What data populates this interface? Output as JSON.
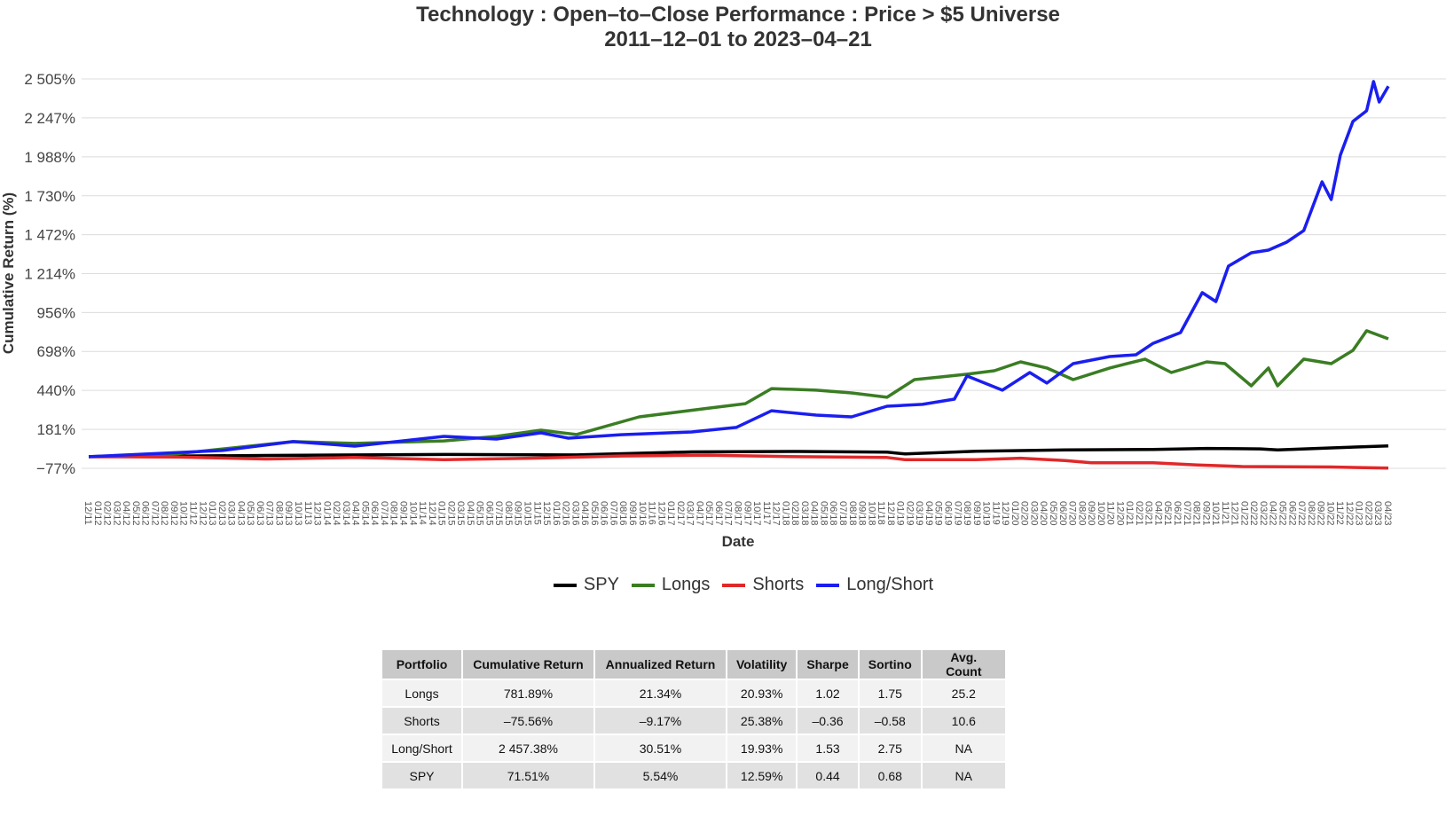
{
  "chart_data": {
    "type": "line",
    "title": "Technology : Open–to–Close Performance : Price > $5 Universe",
    "subtitle": "2011–12–01 to 2023–04–21",
    "xlabel": "Date",
    "ylabel": "Cumulative Return (%)",
    "xlim": [
      2011.92,
      2023.3
    ],
    "ylim": [
      -77,
      2505
    ],
    "y_ticks": [
      -77,
      181,
      440,
      698,
      956,
      1214,
      1472,
      1730,
      1988,
      2247,
      2505
    ],
    "y_tick_labels": [
      "−77%",
      "181%",
      "440%",
      "698%",
      "956%",
      "1 214%",
      "1 472%",
      "1 730%",
      "1 988%",
      "2 247%",
      "2 505%"
    ],
    "x_tick_labels": [
      "12/11",
      "01/12",
      "02/12",
      "03/12",
      "04/12",
      "05/12",
      "06/12",
      "07/12",
      "08/12",
      "09/12",
      "10/12",
      "11/12",
      "12/12",
      "01/13",
      "02/13",
      "03/13",
      "04/13",
      "05/13",
      "06/13",
      "07/13",
      "08/13",
      "09/13",
      "10/13",
      "11/13",
      "12/13",
      "01/14",
      "02/14",
      "03/14",
      "04/14",
      "05/14",
      "06/14",
      "07/14",
      "08/14",
      "09/14",
      "10/14",
      "11/14",
      "12/14",
      "01/15",
      "02/15",
      "03/15",
      "04/15",
      "05/15",
      "06/15",
      "07/15",
      "08/15",
      "09/15",
      "10/15",
      "11/15",
      "12/15",
      "01/16",
      "02/16",
      "03/16",
      "04/16",
      "05/16",
      "06/16",
      "07/16",
      "08/16",
      "09/16",
      "10/16",
      "11/16",
      "12/16",
      "01/17",
      "02/17",
      "03/17",
      "04/17",
      "05/17",
      "06/17",
      "07/17",
      "08/17",
      "09/17",
      "10/17",
      "11/17",
      "12/17",
      "01/18",
      "02/18",
      "03/18",
      "04/18",
      "05/18",
      "06/18",
      "07/18",
      "08/18",
      "09/18",
      "10/18",
      "11/18",
      "12/18",
      "01/19",
      "02/19",
      "03/19",
      "04/19",
      "05/19",
      "06/19",
      "07/19",
      "08/19",
      "09/19",
      "10/19",
      "11/19",
      "12/19",
      "01/20",
      "02/20",
      "03/20",
      "04/20",
      "05/20",
      "06/20",
      "07/20",
      "08/20",
      "09/20",
      "10/20",
      "11/20",
      "12/20",
      "01/21",
      "02/21",
      "03/21",
      "04/21",
      "05/21",
      "06/21",
      "07/21",
      "08/21",
      "09/21",
      "10/21",
      "11/21",
      "12/21",
      "01/22",
      "02/22",
      "03/22",
      "04/22",
      "05/22",
      "06/22",
      "07/22",
      "08/22",
      "09/22",
      "10/22",
      "11/22",
      "12/22",
      "01/23",
      "02/23",
      "03/23",
      "04/23"
    ],
    "grid": true,
    "legend_position": "bottom",
    "series": [
      {
        "name": "SPY",
        "color": "#000000",
        "points": [
          [
            2011.92,
            0
          ],
          [
            2013.47,
            8
          ],
          [
            2015.03,
            15
          ],
          [
            2016.19,
            12
          ],
          [
            2017.2,
            32
          ],
          [
            2018.14,
            35
          ],
          [
            2018.91,
            30
          ],
          [
            2019.07,
            18
          ],
          [
            2019.69,
            36
          ],
          [
            2020.47,
            45
          ],
          [
            2021.24,
            48
          ],
          [
            2021.71,
            55
          ],
          [
            2022.18,
            52
          ],
          [
            2022.33,
            45
          ],
          [
            2022.8,
            58
          ],
          [
            2023.3,
            72
          ]
        ]
      },
      {
        "name": "Longs",
        "color": "#3a7d23",
        "points": [
          [
            2011.92,
            0
          ],
          [
            2012.7,
            20
          ],
          [
            2013.71,
            100
          ],
          [
            2014.25,
            88
          ],
          [
            2015.03,
            105
          ],
          [
            2015.49,
            135
          ],
          [
            2015.88,
            176
          ],
          [
            2016.19,
            147
          ],
          [
            2016.74,
            264
          ],
          [
            2017.36,
            323
          ],
          [
            2017.67,
            352
          ],
          [
            2017.9,
            452
          ],
          [
            2018.29,
            441
          ],
          [
            2018.6,
            423
          ],
          [
            2018.91,
            394
          ],
          [
            2019.15,
            511
          ],
          [
            2019.38,
            529
          ],
          [
            2019.61,
            547
          ],
          [
            2019.85,
            570
          ],
          [
            2020.08,
            629
          ],
          [
            2020.31,
            588
          ],
          [
            2020.54,
            511
          ],
          [
            2020.86,
            588
          ],
          [
            2021.17,
            647
          ],
          [
            2021.4,
            558
          ],
          [
            2021.71,
            629
          ],
          [
            2021.87,
            617
          ],
          [
            2022.1,
            470
          ],
          [
            2022.25,
            588
          ],
          [
            2022.33,
            470
          ],
          [
            2022.56,
            647
          ],
          [
            2022.8,
            617
          ],
          [
            2022.99,
            705
          ],
          [
            2023.11,
            835
          ],
          [
            2023.3,
            782
          ]
        ]
      },
      {
        "name": "Shorts",
        "color": "#e0282a",
        "points": [
          [
            2011.92,
            0
          ],
          [
            2012.7,
            -2
          ],
          [
            2013.47,
            -15
          ],
          [
            2014.25,
            -5
          ],
          [
            2015.03,
            -20
          ],
          [
            2015.8,
            -10
          ],
          [
            2016.58,
            5
          ],
          [
            2017.36,
            10
          ],
          [
            2018.14,
            0
          ],
          [
            2018.91,
            -5
          ],
          [
            2019.07,
            -20
          ],
          [
            2019.69,
            -20
          ],
          [
            2020.08,
            -10
          ],
          [
            2020.47,
            -25
          ],
          [
            2020.7,
            -40
          ],
          [
            2021.24,
            -40
          ],
          [
            2021.63,
            -55
          ],
          [
            2022.02,
            -65
          ],
          [
            2022.8,
            -68
          ],
          [
            2023.3,
            -76
          ]
        ]
      },
      {
        "name": "Long/Short",
        "color": "#1a1ef0",
        "points": [
          [
            2011.92,
            0
          ],
          [
            2013.09,
            41
          ],
          [
            2013.71,
            100
          ],
          [
            2014.25,
            70
          ],
          [
            2015.03,
            135
          ],
          [
            2015.49,
            117
          ],
          [
            2015.88,
            158
          ],
          [
            2016.12,
            123
          ],
          [
            2016.58,
            146
          ],
          [
            2017.2,
            164
          ],
          [
            2017.59,
            194
          ],
          [
            2017.9,
            305
          ],
          [
            2018.29,
            276
          ],
          [
            2018.6,
            264
          ],
          [
            2018.91,
            335
          ],
          [
            2019.22,
            347
          ],
          [
            2019.5,
            382
          ],
          [
            2019.61,
            535
          ],
          [
            2019.92,
            441
          ],
          [
            2020.16,
            558
          ],
          [
            2020.31,
            488
          ],
          [
            2020.54,
            617
          ],
          [
            2020.86,
            664
          ],
          [
            2021.09,
            676
          ],
          [
            2021.24,
            752
          ],
          [
            2021.48,
            823
          ],
          [
            2021.67,
            1088
          ],
          [
            2021.79,
            1029
          ],
          [
            2021.9,
            1264
          ],
          [
            2022.1,
            1352
          ],
          [
            2022.25,
            1370
          ],
          [
            2022.41,
            1423
          ],
          [
            2022.56,
            1500
          ],
          [
            2022.72,
            1823
          ],
          [
            2022.8,
            1705
          ],
          [
            2022.88,
            2000
          ],
          [
            2022.99,
            2223
          ],
          [
            2023.11,
            2294
          ],
          [
            2023.17,
            2488
          ],
          [
            2023.22,
            2352
          ],
          [
            2023.3,
            2457
          ]
        ]
      }
    ]
  },
  "legend": [
    {
      "label": "SPY",
      "color": "#000000"
    },
    {
      "label": "Longs",
      "color": "#3a7d23"
    },
    {
      "label": "Shorts",
      "color": "#e0282a"
    },
    {
      "label": "Long/Short",
      "color": "#1a1ef0"
    }
  ],
  "table": {
    "headers": [
      "Portfolio",
      "Cumulative Return",
      "Annualized Return",
      "Volatility",
      "Sharpe",
      "Sortino",
      "Avg. Count"
    ],
    "rows": [
      [
        "Longs",
        "781.89%",
        "21.34%",
        "20.93%",
        "1.02",
        "1.75",
        "25.2"
      ],
      [
        "Shorts",
        "–75.56%",
        "–9.17%",
        "25.38%",
        "–0.36",
        "–0.58",
        "10.6"
      ],
      [
        "Long/Short",
        "2 457.38%",
        "30.51%",
        "19.93%",
        "1.53",
        "2.75",
        "NA"
      ],
      [
        "SPY",
        "71.51%",
        "5.54%",
        "12.59%",
        "0.44",
        "0.68",
        "NA"
      ]
    ]
  }
}
